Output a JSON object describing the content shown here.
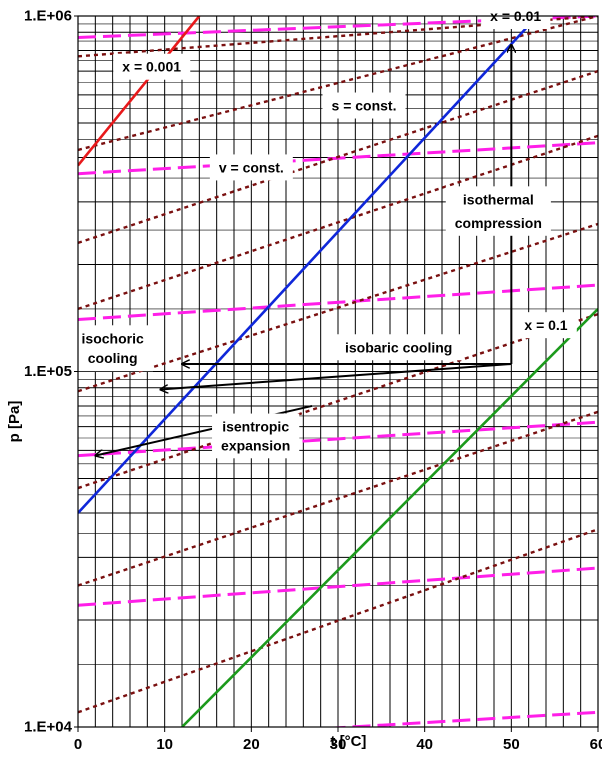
{
  "chart_data": {
    "type": "line",
    "xlabel": "t [°C]",
    "ylabel": "p [Pa]",
    "xlim": [
      0,
      60
    ],
    "ylim": [
      10000,
      1000000
    ],
    "y_scale": "log",
    "grid": true,
    "x_ticks": [
      "0",
      "10",
      "20",
      "30",
      "40",
      "50",
      "60"
    ],
    "y_ticks": [
      "1.E+04",
      "1.E+05",
      "1.E+06"
    ],
    "colors": {
      "quality_high": "#e8191b",
      "quality_mid": "#0f27d9",
      "quality_low": "#1c9a1c",
      "isochore": "#ff1ee8",
      "isentrope": "#7a1010",
      "grid": "#000000"
    },
    "quality_lines": [
      {
        "label": "x = 0.001",
        "color_key": "quality_high",
        "x": [
          0,
          14
        ],
        "y": [
          380000,
          1000000
        ]
      },
      {
        "label": "x = 0.01",
        "color_key": "quality_mid",
        "x": [
          0,
          53
        ],
        "y": [
          40000,
          1000000
        ]
      },
      {
        "label": "x = 0.1",
        "color_key": "quality_low",
        "x": [
          12,
          60
        ],
        "y": [
          10000,
          150000
        ]
      }
    ],
    "isochores": [
      {
        "x": [
          0,
          60
        ],
        "y": [
          870000,
          1000000
        ]
      },
      {
        "x": [
          0,
          60
        ],
        "y": [
          360000,
          440000
        ]
      },
      {
        "x": [
          0,
          60
        ],
        "y": [
          140000,
          175000
        ]
      },
      {
        "x": [
          0,
          60
        ],
        "y": [
          58000,
          72000
        ]
      },
      {
        "x": [
          0,
          60
        ],
        "y": [
          22000,
          28000
        ]
      },
      {
        "x": [
          0,
          60
        ],
        "y": [
          9000,
          11000
        ]
      }
    ],
    "isentropes": [
      {
        "x": [
          0,
          60
        ],
        "y": [
          770000,
          1000000
        ]
      },
      {
        "x": [
          0,
          60
        ],
        "y": [
          420000,
          1000000
        ]
      },
      {
        "x": [
          0,
          60
        ],
        "y": [
          230000,
          700000
        ]
      },
      {
        "x": [
          0,
          60
        ],
        "y": [
          150000,
          460000
        ]
      },
      {
        "x": [
          0,
          60
        ],
        "y": [
          88000,
          260000
        ]
      },
      {
        "x": [
          0,
          60
        ],
        "y": [
          47000,
          145000
        ]
      },
      {
        "x": [
          0,
          60
        ],
        "y": [
          25000,
          77000
        ]
      },
      {
        "x": [
          0,
          60
        ],
        "y": [
          11000,
          36000
        ]
      }
    ],
    "arrows": [
      {
        "from": [
          50,
          105000
        ],
        "to": [
          50,
          830000
        ],
        "label": "isothermal compression"
      },
      {
        "from": [
          50,
          105000
        ],
        "to": [
          12,
          105000
        ],
        "label": "isobaric cooling"
      },
      {
        "from": [
          50,
          105000
        ],
        "to": [
          9.5,
          89000
        ],
        "label": "isochoric cooling"
      },
      {
        "from": [
          27,
          80000
        ],
        "to": [
          2,
          58000
        ],
        "label": "isentropic expansion"
      }
    ],
    "annotations": [
      {
        "text": "x = 0.001",
        "x": 8.5,
        "y": 720000,
        "boxed": true
      },
      {
        "text": "x = 0.01",
        "x": 50.5,
        "y": 1000000,
        "boxed": true
      },
      {
        "text": "x = 0.1",
        "x": 54,
        "y": 135000,
        "boxed": true
      },
      {
        "text": "s = const.",
        "x": 33,
        "y": 560000,
        "color_key": "isentrope",
        "boxed": true
      },
      {
        "text": "v = const.",
        "x": 20,
        "y": 375000,
        "color_key": "isochore",
        "boxed": true
      },
      {
        "text": "isothermal",
        "x": 48.5,
        "y": 305000,
        "boxed": true
      },
      {
        "text": "compression",
        "x": 48.5,
        "y": 262000,
        "boxed": false
      },
      {
        "text": "isobaric cooling",
        "x": 37,
        "y": 117000,
        "boxed": true
      },
      {
        "text": "isochoric",
        "x": 4,
        "y": 124000,
        "boxed": true
      },
      {
        "text": "cooling",
        "x": 4,
        "y": 109000,
        "boxed": false
      },
      {
        "text": "isentropic",
        "x": 20.5,
        "y": 70000,
        "boxed": true
      },
      {
        "text": "expansion",
        "x": 20.5,
        "y": 62000,
        "boxed": false
      }
    ]
  }
}
